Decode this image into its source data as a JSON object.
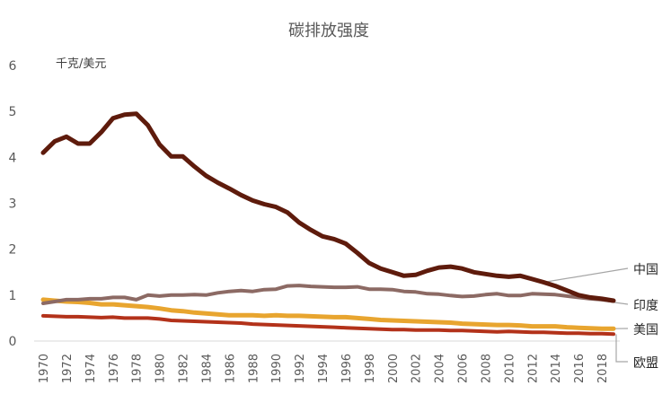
{
  "chart_data": {
    "type": "line",
    "title": "碳排放强度",
    "unit_label": "千克/美元",
    "xlabel": "",
    "ylabel": "",
    "ylim": [
      0,
      6
    ],
    "yticks": [
      "0",
      "1",
      "2",
      "3",
      "4",
      "5",
      "6"
    ],
    "xlim": [
      1970,
      2019
    ],
    "xticks": [
      "1970",
      "1972",
      "1974",
      "1976",
      "1978",
      "1980",
      "1982",
      "1984",
      "1986",
      "1988",
      "1990",
      "1992",
      "1994",
      "1996",
      "1998",
      "2000",
      "2002",
      "2004",
      "2006",
      "2008",
      "2010",
      "2012",
      "2014",
      "2016",
      "2018"
    ],
    "grid": false,
    "legend": "direct labels at line ends (right)",
    "x": [
      1970,
      1971,
      1972,
      1973,
      1974,
      1975,
      1976,
      1977,
      1978,
      1979,
      1980,
      1981,
      1982,
      1983,
      1984,
      1985,
      1986,
      1987,
      1988,
      1989,
      1990,
      1991,
      1992,
      1993,
      1994,
      1995,
      1996,
      1997,
      1998,
      1999,
      2000,
      2001,
      2002,
      2003,
      2004,
      2005,
      2006,
      2007,
      2008,
      2009,
      2010,
      2011,
      2012,
      2013,
      2014,
      2015,
      2016,
      2017,
      2018,
      2019
    ],
    "series": [
      {
        "name": "中国",
        "color": "#5e1b0c",
        "values": [
          4.1,
          4.35,
          4.45,
          4.3,
          4.3,
          4.55,
          4.85,
          4.93,
          4.95,
          4.7,
          4.28,
          4.02,
          4.02,
          3.8,
          3.6,
          3.45,
          3.32,
          3.18,
          3.06,
          2.98,
          2.92,
          2.8,
          2.58,
          2.42,
          2.28,
          2.22,
          2.12,
          1.92,
          1.7,
          1.58,
          1.5,
          1.42,
          1.44,
          1.53,
          1.6,
          1.62,
          1.58,
          1.5,
          1.46,
          1.42,
          1.4,
          1.42,
          1.35,
          1.28,
          1.2,
          1.1,
          1.0,
          0.95,
          0.92,
          0.88
        ]
      },
      {
        "name": "印度",
        "color": "#8c6a64",
        "values": [
          0.82,
          0.86,
          0.9,
          0.9,
          0.92,
          0.92,
          0.95,
          0.95,
          0.9,
          1.0,
          0.98,
          1.0,
          1.0,
          1.01,
          1.0,
          1.05,
          1.08,
          1.1,
          1.08,
          1.12,
          1.13,
          1.2,
          1.21,
          1.19,
          1.18,
          1.17,
          1.17,
          1.18,
          1.13,
          1.13,
          1.12,
          1.08,
          1.07,
          1.03,
          1.02,
          0.99,
          0.97,
          0.98,
          1.01,
          1.03,
          0.99,
          0.99,
          1.03,
          1.02,
          1.01,
          0.98,
          0.95,
          0.92,
          0.9,
          0.87
        ]
      },
      {
        "name": "美国",
        "color": "#e8a52f",
        "values": [
          0.9,
          0.88,
          0.86,
          0.85,
          0.83,
          0.8,
          0.8,
          0.78,
          0.76,
          0.74,
          0.71,
          0.67,
          0.65,
          0.62,
          0.6,
          0.58,
          0.56,
          0.56,
          0.56,
          0.55,
          0.56,
          0.55,
          0.55,
          0.54,
          0.53,
          0.52,
          0.52,
          0.5,
          0.48,
          0.46,
          0.45,
          0.44,
          0.43,
          0.42,
          0.41,
          0.4,
          0.38,
          0.37,
          0.36,
          0.35,
          0.35,
          0.34,
          0.32,
          0.32,
          0.32,
          0.3,
          0.29,
          0.28,
          0.27,
          0.27
        ]
      },
      {
        "name": "欧盟",
        "color": "#b3321a",
        "values": [
          0.55,
          0.54,
          0.53,
          0.53,
          0.52,
          0.51,
          0.52,
          0.5,
          0.5,
          0.5,
          0.48,
          0.45,
          0.44,
          0.43,
          0.42,
          0.41,
          0.4,
          0.39,
          0.37,
          0.36,
          0.35,
          0.34,
          0.33,
          0.32,
          0.31,
          0.3,
          0.29,
          0.28,
          0.27,
          0.26,
          0.25,
          0.25,
          0.24,
          0.24,
          0.24,
          0.23,
          0.23,
          0.22,
          0.21,
          0.2,
          0.21,
          0.2,
          0.19,
          0.19,
          0.18,
          0.17,
          0.17,
          0.16,
          0.16,
          0.15
        ]
      }
    ]
  }
}
